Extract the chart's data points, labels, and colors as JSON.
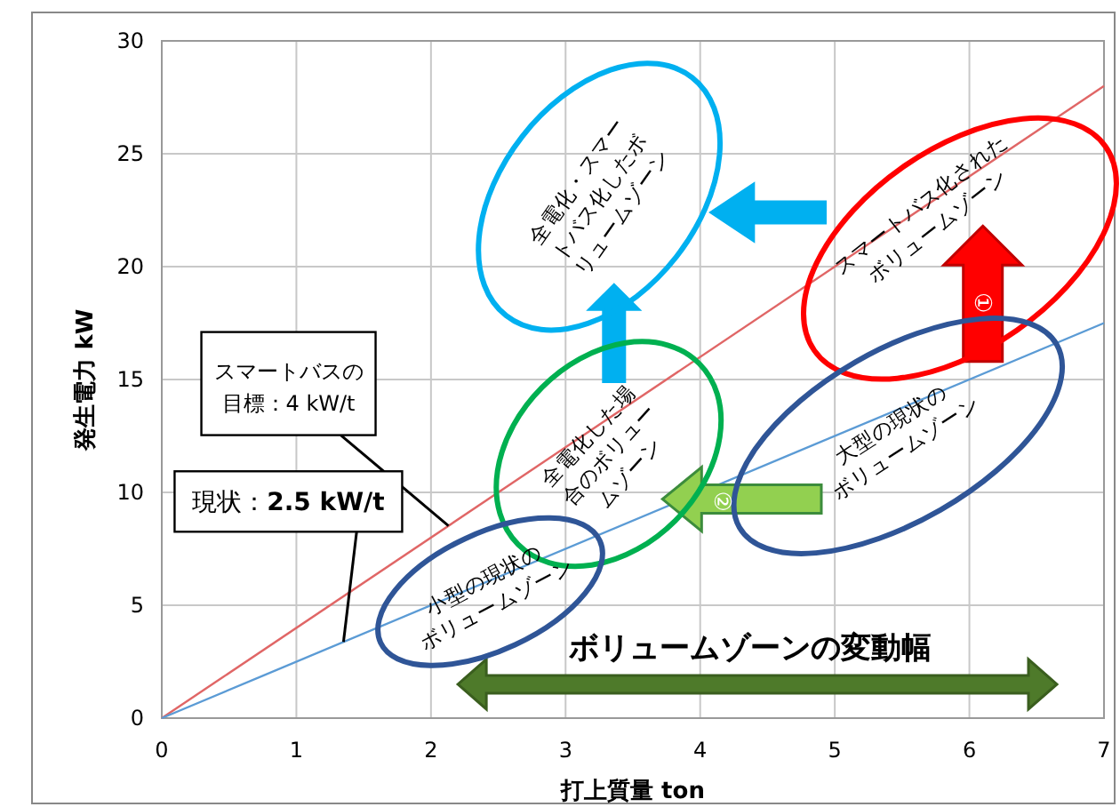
{
  "chart_data": {
    "type": "line",
    "xlabel": "打上質量 ton",
    "ylabel": "発生電力 kW",
    "x": [
      0,
      7
    ],
    "series": [
      {
        "color": "#e06666",
        "values": [
          0,
          28
        ]
      },
      {
        "color": "#5b9bd5",
        "values": [
          0,
          17.5
        ]
      }
    ],
    "xlim": [
      0,
      7
    ],
    "xticks": [
      0,
      1,
      2,
      3,
      4,
      5,
      6,
      7
    ],
    "ylim": [
      0,
      30
    ],
    "yticks": [
      0,
      5,
      10,
      15,
      20,
      25,
      30
    ],
    "grid": true,
    "annotations": [
      {
        "text": "スマートバスの目標：4 kW/t",
        "x": 2.13,
        "y": 8.52
      },
      {
        "text": "現状：2.5 kW/t",
        "x": 1.35,
        "y": 3.375
      },
      "全電化・スマートバス化したボリュームゾーン",
      "スマートバス化されたボリュームゾーン",
      "全電化した場合のボリュームゾーン",
      "大型の現状のボリュームゾーン",
      "小型の現状のボリュームゾーン",
      "ボリュームゾーンの変動幅",
      "①",
      "②"
    ]
  }
}
